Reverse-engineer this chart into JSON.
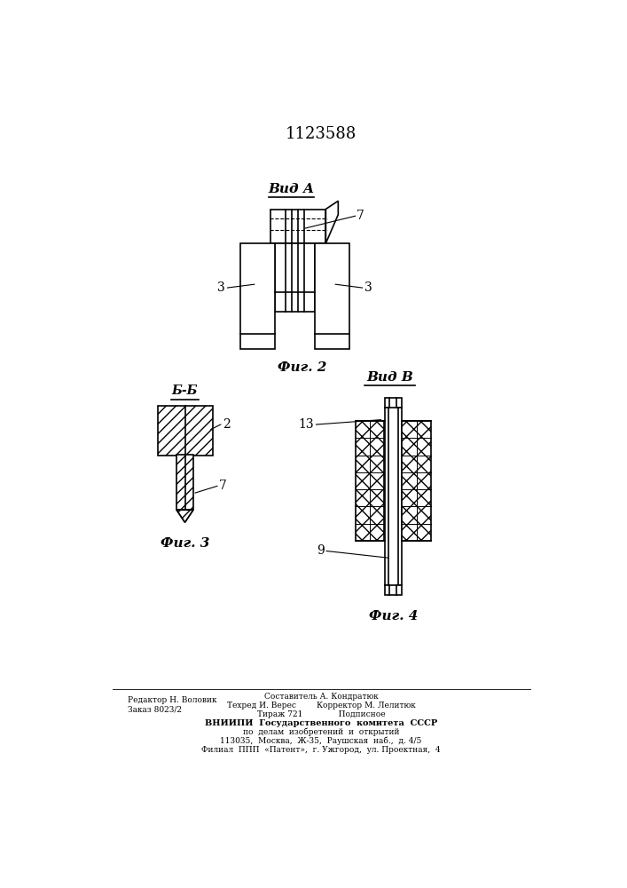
{
  "title": "1123588",
  "bg_color": "#ffffff",
  "line_color": "#000000",
  "fig2_label": "Вид А",
  "fig2_caption": "Фиг. 2",
  "fig3_label": "Б-Б",
  "fig3_caption": "Фиг. 3",
  "fig4_label": "Вид В",
  "fig4_caption": "Фиг. 4",
  "footer_lines": [
    "Составитель А. Кондратюк",
    "Техред И. Верес        Корректор М. Лелитюк",
    "Тираж 721              Подписное",
    "ВНИИПИ  Государственного  комитета  СССР",
    "по  делам  изобретений  и  открытий",
    "113035,  Москва,  Ж-35,  Раушская  наб.,  д. 4/5",
    "Филиал  ППП  «Патент»,  г. Ужгород,  ул. Проектная,  4"
  ],
  "footer_left": [
    "Редактор Н. Воловик",
    "Заказ 8023/2"
  ]
}
